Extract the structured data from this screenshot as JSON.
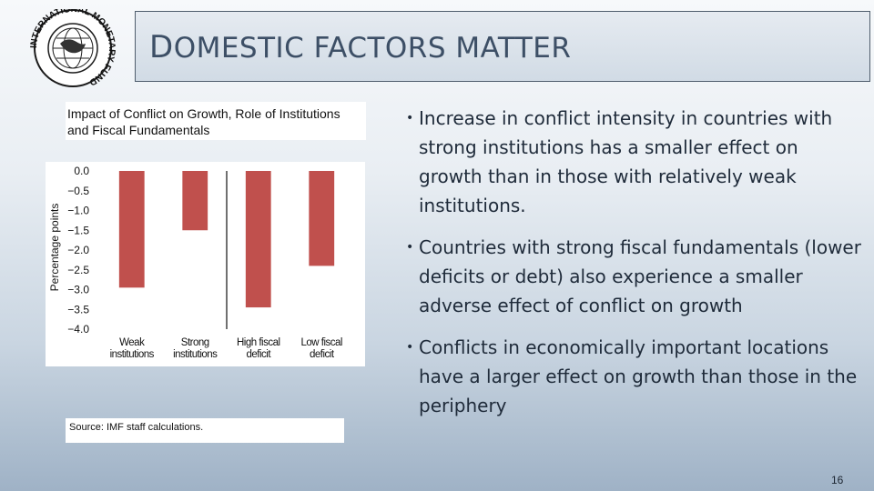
{
  "slide": {
    "title_first": "D",
    "title_rest": "OMESTIC FACTORS MATTER",
    "logo_text": "INTERNATIONAL MONETARY FUND",
    "page_number": "16"
  },
  "chart_title": "Impact of Conflict on Growth, Role of Institutions and Fiscal Fundamentals",
  "source": "Source: IMF staff calculations.",
  "bullets": [
    "Increase in conflict intensity in countries with strong institutions has a smaller effect on growth than in those with relatively weak institutions.",
    "Countries with strong fiscal fundamentals (lower deficits or debt) also experience a smaller adverse effect of conflict on growth",
    "Conflicts in economically important locations have a larger effect on growth than those in the periphery"
  ],
  "chart_data": {
    "type": "bar",
    "categories": [
      [
        "Weak",
        "institutions"
      ],
      [
        "Strong",
        "institutions"
      ],
      [
        "High fiscal",
        "deficit"
      ],
      [
        "Low fiscal",
        "deficit"
      ]
    ],
    "values": [
      -2.95,
      -1.5,
      -3.45,
      -2.4
    ],
    "ylabel": "Percentage points",
    "ylim": [
      -4.0,
      0.0
    ],
    "yticks": [
      "0.0",
      "−0.5",
      "−1.0",
      "−1.5",
      "−2.0",
      "−2.5",
      "−3.0",
      "−3.5",
      "−4.0"
    ],
    "bar_color": "#c0504d",
    "grid": false,
    "group_divider_after": 2
  }
}
